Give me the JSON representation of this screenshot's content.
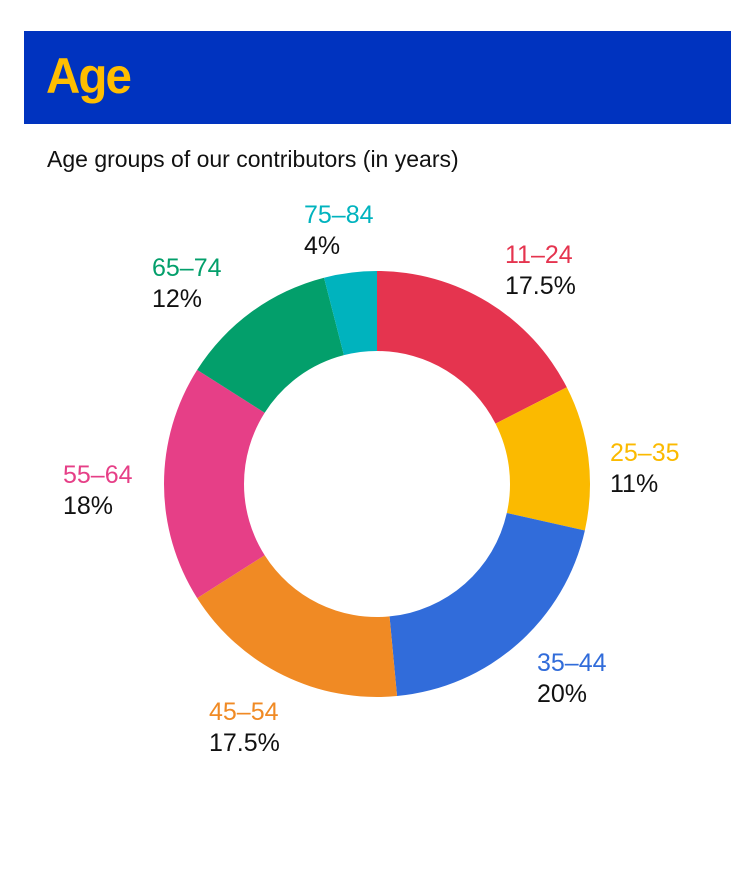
{
  "header": {
    "title": "Age"
  },
  "chart_data": {
    "type": "pie",
    "donut": true,
    "title": "Age groups of our contributors (in years)",
    "categories": [
      "11–24",
      "25–35",
      "35–44",
      "45–54",
      "55–64",
      "65–74",
      "75–84"
    ],
    "values": [
      17.5,
      11,
      20,
      17.5,
      18,
      12,
      4
    ],
    "value_labels": [
      "17.5%",
      "11%",
      "20%",
      "17.5%",
      "18%",
      "12%",
      "4%"
    ],
    "colors": [
      "#E5344F",
      "#FBBA00",
      "#316CDA",
      "#F08A24",
      "#E63F87",
      "#039F6B",
      "#00B3BE"
    ],
    "start": "12 o'clock, clockwise"
  }
}
